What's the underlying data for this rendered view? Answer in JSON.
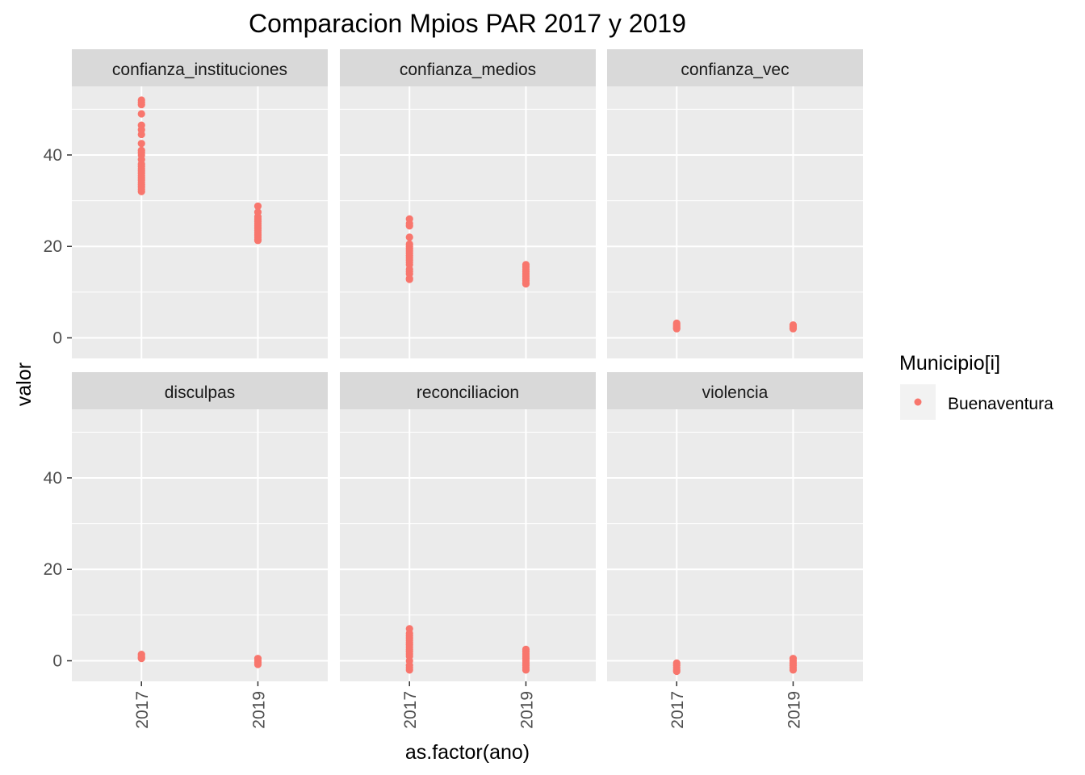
{
  "chart_data": {
    "type": "scatter",
    "title": "Comparacion Mpios PAR 2017 y 2019",
    "xlabel": "as.factor(ano)",
    "ylabel": "valor",
    "categories": [
      "2017",
      "2019"
    ],
    "ylim": [
      -4.5,
      55
    ],
    "yticks": [
      0,
      20,
      40
    ],
    "grid": true,
    "facet_layout": "2x3",
    "point_color": "#F8766D",
    "panel_background": "#EBEBEB",
    "strip_background": "#D9D9D9",
    "legend": {
      "title": "Municipio[i]",
      "placement": "right",
      "entries": [
        {
          "label": "Buenaventura",
          "color": "#F8766D"
        }
      ]
    },
    "facets": [
      {
        "name": "confianza_instituciones",
        "points": {
          "2017": [
            52,
            51.5,
            51,
            49,
            46.5,
            45.5,
            44.5,
            42.5,
            41,
            40.5,
            40,
            39,
            38,
            37.5,
            37,
            36.5,
            36,
            35.5,
            35,
            34.5,
            34,
            33.5,
            33,
            32.5,
            32
          ],
          "2019": [
            28.8,
            27.5,
            26.5,
            26,
            25.5,
            25,
            24.5,
            24,
            23.5,
            23,
            22.5,
            22,
            21.5,
            21.3
          ]
        }
      },
      {
        "name": "confianza_medios",
        "points": {
          "2017": [
            26,
            25,
            24.5,
            22,
            20.5,
            20,
            19.5,
            19,
            18.5,
            18,
            17.5,
            17,
            16.5,
            16,
            15,
            14.5,
            14,
            13,
            12.8
          ],
          "2019": [
            16,
            15.5,
            15,
            14.5,
            14,
            13.5,
            13,
            12.5,
            12,
            11.8
          ]
        }
      },
      {
        "name": "confianza_vec",
        "points": {
          "2017": [
            3.2,
            2.8,
            2.5,
            2.2,
            2
          ],
          "2019": [
            2.8,
            2.5,
            2.2,
            2
          ]
        }
      },
      {
        "name": "disculpas",
        "points": {
          "2017": [
            1.4,
            1,
            0.7,
            0.5
          ],
          "2019": [
            0.5,
            0,
            -0.4,
            -0.8
          ]
        }
      },
      {
        "name": "reconciliacion",
        "points": {
          "2017": [
            7,
            6,
            5.5,
            5,
            4.5,
            4,
            3.5,
            3,
            2.5,
            2,
            1.5,
            1,
            0,
            -1,
            -1.5,
            -2
          ],
          "2019": [
            2.5,
            2,
            1.5,
            1,
            0.5,
            0,
            -0.5,
            -1,
            -1.5,
            -2
          ]
        }
      },
      {
        "name": "violencia",
        "points": {
          "2017": [
            -0.5,
            -1,
            -1.5,
            -2,
            -2.3
          ],
          "2019": [
            0.5,
            0,
            -0.5,
            -1,
            -1.5,
            -2
          ]
        }
      }
    ]
  }
}
